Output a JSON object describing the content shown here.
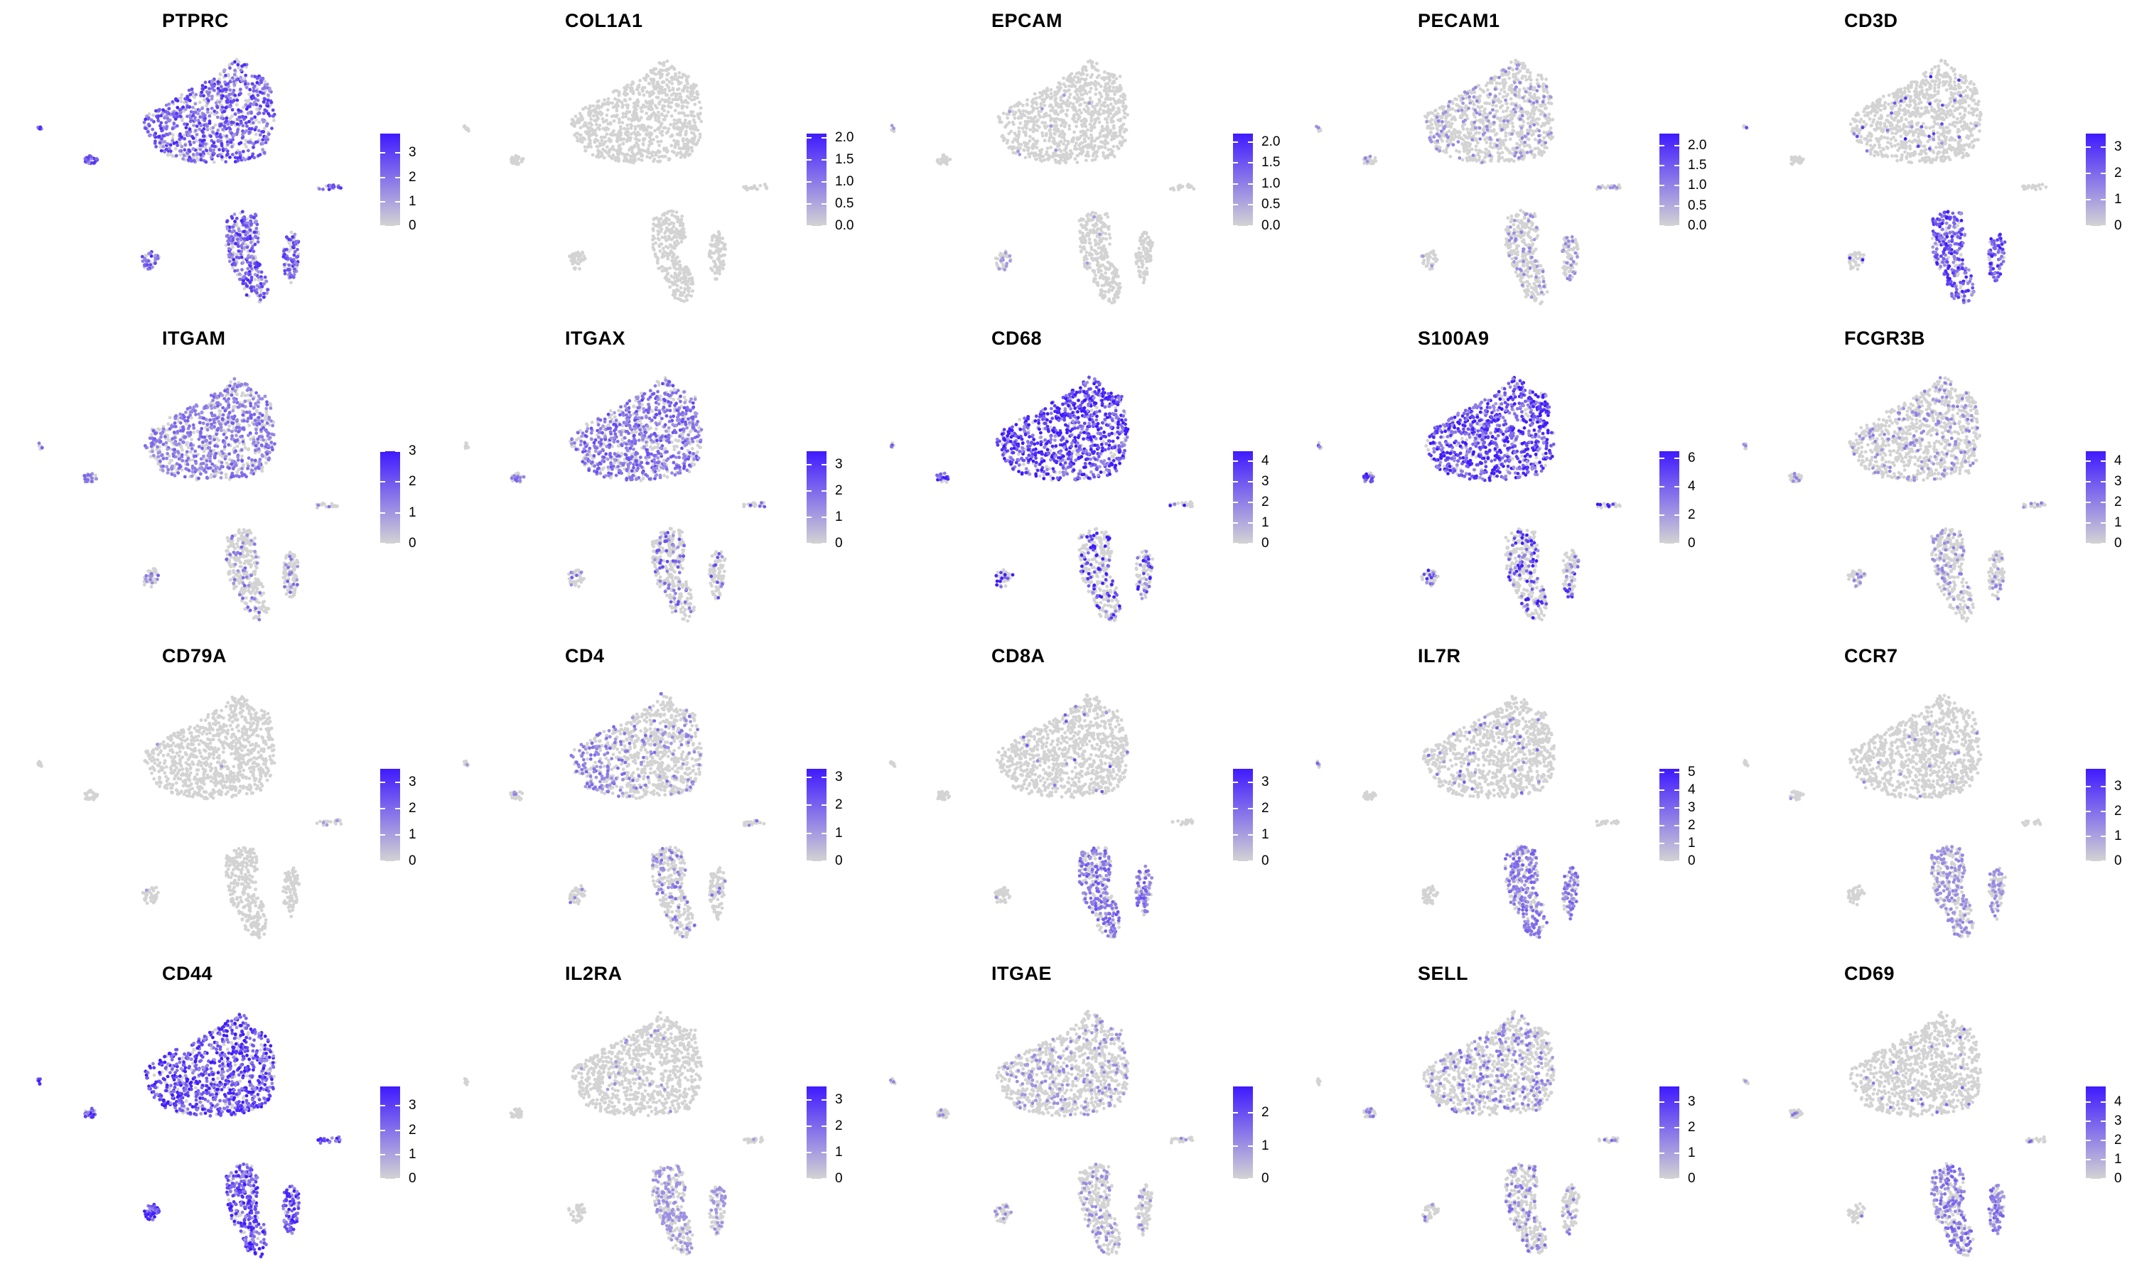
{
  "chart_data": {
    "type": "scatter",
    "layout": {
      "rows": 4,
      "cols": 5
    },
    "color_scale": {
      "low": "#d3d3d3",
      "high": "#3f1aff"
    },
    "panels": [
      {
        "gene": "PTPRC",
        "max": 3.8,
        "ticks": [
          0,
          1,
          2,
          3
        ],
        "labels": [
          "0",
          "1",
          "2",
          "3"
        ],
        "bias": "all",
        "intensity": 0.55
      },
      {
        "gene": "COL1A1",
        "max": 2.1,
        "ticks": [
          0,
          0.5,
          1.0,
          1.5,
          2.0
        ],
        "labels": [
          "0.0",
          "0.5",
          "1.0",
          "1.5",
          "2.0"
        ],
        "bias": "none",
        "intensity": 0.01
      },
      {
        "gene": "EPCAM",
        "max": 2.2,
        "ticks": [
          0,
          0.5,
          1.0,
          1.5,
          2.0
        ],
        "labels": [
          "0.0",
          "0.5",
          "1.0",
          "1.5",
          "2.0"
        ],
        "bias": "leftsmall",
        "intensity": 0.02
      },
      {
        "gene": "PECAM1",
        "max": 2.3,
        "ticks": [
          0,
          0.5,
          1.0,
          1.5,
          2.0
        ],
        "labels": [
          "0.0",
          "0.5",
          "1.0",
          "1.5",
          "2.0"
        ],
        "bias": "sparse",
        "intensity": 0.12
      },
      {
        "gene": "CD3D",
        "max": 3.5,
        "ticks": [
          0,
          1,
          2,
          3
        ],
        "labels": [
          "0",
          "1",
          "2",
          "3"
        ],
        "bias": "tcell",
        "intensity": 0.6
      },
      {
        "gene": "ITGAM",
        "max": 3.0,
        "ticks": [
          0,
          1,
          2,
          3
        ],
        "labels": [
          "0",
          "1",
          "2",
          "3"
        ],
        "bias": "myeloid",
        "intensity": 0.3
      },
      {
        "gene": "ITGAX",
        "max": 3.5,
        "ticks": [
          0,
          1,
          2,
          3
        ],
        "labels": [
          "0",
          "1",
          "2",
          "3"
        ],
        "bias": "myeloid",
        "intensity": 0.4
      },
      {
        "gene": "CD68",
        "max": 4.5,
        "ticks": [
          0,
          1,
          2,
          3,
          4
        ],
        "labels": [
          "0",
          "1",
          "2",
          "3",
          "4"
        ],
        "bias": "myeloid",
        "intensity": 0.8
      },
      {
        "gene": "S100A9",
        "max": 6.5,
        "ticks": [
          0,
          2,
          4,
          6
        ],
        "labels": [
          "0",
          "2",
          "4",
          "6"
        ],
        "bias": "myeloid",
        "intensity": 0.75
      },
      {
        "gene": "FCGR3B",
        "max": 4.5,
        "ticks": [
          0,
          1,
          2,
          3,
          4
        ],
        "labels": [
          "0",
          "1",
          "2",
          "3",
          "4"
        ],
        "bias": "sparse",
        "intensity": 0.15
      },
      {
        "gene": "CD79A",
        "max": 3.5,
        "ticks": [
          0,
          1,
          2,
          3
        ],
        "labels": [
          "0",
          "1",
          "2",
          "3"
        ],
        "bias": "bcell",
        "intensity": 0.03
      },
      {
        "gene": "CD4",
        "max": 3.3,
        "ticks": [
          0,
          1,
          2,
          3
        ],
        "labels": [
          "0",
          "1",
          "2",
          "3"
        ],
        "bias": "myeloidleft",
        "intensity": 0.25
      },
      {
        "gene": "CD8A",
        "max": 3.5,
        "ticks": [
          0,
          1,
          2,
          3
        ],
        "labels": [
          "0",
          "1",
          "2",
          "3"
        ],
        "bias": "tcell",
        "intensity": 0.35
      },
      {
        "gene": "IL7R",
        "max": 5.2,
        "ticks": [
          0,
          1,
          2,
          3,
          4,
          5
        ],
        "labels": [
          "0",
          "1",
          "2",
          "3",
          "4",
          "5"
        ],
        "bias": "tcell",
        "intensity": 0.3
      },
      {
        "gene": "CCR7",
        "max": 3.7,
        "ticks": [
          0,
          1,
          2,
          3
        ],
        "labels": [
          "0",
          "1",
          "2",
          "3"
        ],
        "bias": "tcell",
        "intensity": 0.12
      },
      {
        "gene": "CD44",
        "max": 3.8,
        "ticks": [
          0,
          1,
          2,
          3
        ],
        "labels": [
          "0",
          "1",
          "2",
          "3"
        ],
        "bias": "all",
        "intensity": 0.7
      },
      {
        "gene": "IL2RA",
        "max": 3.5,
        "ticks": [
          0,
          1,
          2,
          3
        ],
        "labels": [
          "0",
          "1",
          "2",
          "3"
        ],
        "bias": "tcell",
        "intensity": 0.08
      },
      {
        "gene": "ITGAE",
        "max": 2.8,
        "ticks": [
          0,
          1,
          2
        ],
        "labels": [
          "0",
          "1",
          "2"
        ],
        "bias": "sparse",
        "intensity": 0.12
      },
      {
        "gene": "SELL",
        "max": 3.6,
        "ticks": [
          0,
          1,
          2,
          3
        ],
        "labels": [
          "0",
          "1",
          "2",
          "3"
        ],
        "bias": "sparse",
        "intensity": 0.25
      },
      {
        "gene": "CD69",
        "max": 4.8,
        "ticks": [
          0,
          1,
          2,
          3,
          4
        ],
        "labels": [
          "0",
          "1",
          "2",
          "3",
          "4"
        ],
        "bias": "tcell",
        "intensity": 0.3
      }
    ]
  }
}
